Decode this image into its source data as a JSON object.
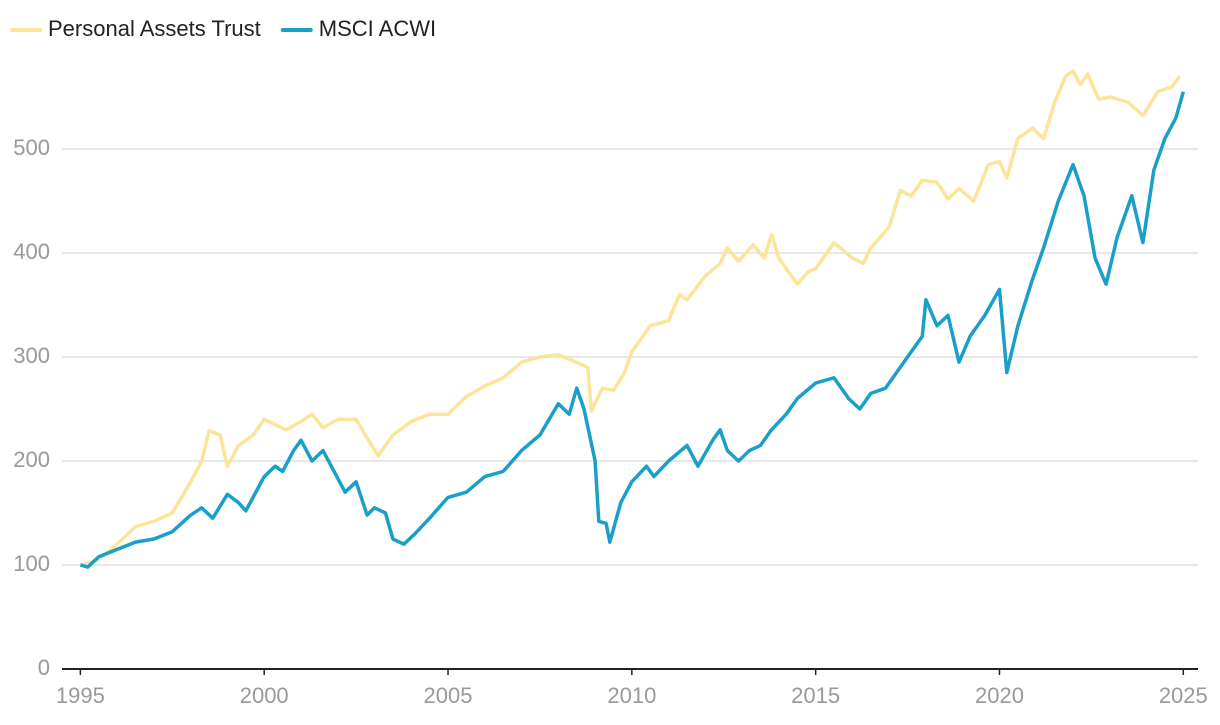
{
  "chart_data": {
    "type": "line",
    "xlim": [
      1994.5,
      2025.4
    ],
    "xticks": [
      1995,
      2000,
      2005,
      2010,
      2015,
      2020,
      2025
    ],
    "ylim": [
      0,
      600
    ],
    "yticks": [
      0,
      100,
      200,
      300,
      400,
      500
    ],
    "grid": true,
    "legend": "top-left",
    "series": [
      {
        "name": "Personal Assets Trust",
        "color": "#fce49a",
        "x": [
          1995.0,
          1995.5,
          1996.0,
          1996.5,
          1997.0,
          1997.5,
          1998.0,
          1998.3,
          1998.5,
          1998.8,
          1999.0,
          1999.3,
          1999.7,
          2000.0,
          2000.3,
          2000.6,
          2001.0,
          2001.3,
          2001.6,
          2002.0,
          2002.5,
          2002.8,
          2003.1,
          2003.5,
          2004.0,
          2004.5,
          2005.0,
          2005.5,
          2006.0,
          2006.5,
          2007.0,
          2007.5,
          2008.0,
          2008.5,
          2008.8,
          2008.9,
          2009.2,
          2009.5,
          2009.8,
          2010.0,
          2010.5,
          2011.0,
          2011.3,
          2011.5,
          2012.0,
          2012.4,
          2012.6,
          2012.9,
          2013.3,
          2013.6,
          2013.8,
          2014.0,
          2014.3,
          2014.5,
          2014.8,
          2015.0,
          2015.5,
          2016.0,
          2016.3,
          2016.5,
          2017.0,
          2017.3,
          2017.6,
          2017.9,
          2018.3,
          2018.6,
          2018.9,
          2019.3,
          2019.7,
          2020.0,
          2020.2,
          2020.5,
          2020.9,
          2021.2,
          2021.5,
          2021.8,
          2022.0,
          2022.2,
          2022.4,
          2022.7,
          2023.0,
          2023.5,
          2023.9,
          2024.3,
          2024.7,
          2024.9
        ],
        "values": [
          100,
          105,
          120,
          137,
          142,
          150,
          180,
          200,
          229,
          225,
          195,
          215,
          225,
          240,
          235,
          230,
          238,
          245,
          232,
          240,
          240,
          222,
          205,
          225,
          238,
          245,
          245,
          262,
          272,
          280,
          295,
          300,
          302,
          295,
          290,
          248,
          270,
          268,
          285,
          305,
          330,
          335,
          360,
          355,
          378,
          390,
          405,
          392,
          408,
          395,
          418,
          395,
          380,
          370,
          382,
          385,
          410,
          395,
          390,
          405,
          425,
          460,
          455,
          470,
          468,
          452,
          462,
          450,
          485,
          488,
          472,
          510,
          520,
          510,
          545,
          570,
          575,
          562,
          572,
          548,
          550,
          545,
          532,
          555,
          560,
          570
        ]
      },
      {
        "name": "MSCI ACWI",
        "color": "#1a9fc9",
        "x": [
          1995.0,
          1995.2,
          1995.5,
          1996.0,
          1996.5,
          1997.0,
          1997.5,
          1998.0,
          1998.3,
          1998.6,
          1999.0,
          1999.3,
          1999.5,
          2000.0,
          2000.3,
          2000.5,
          2000.8,
          2001.0,
          2001.3,
          2001.6,
          2001.9,
          2002.2,
          2002.5,
          2002.8,
          2003.0,
          2003.3,
          2003.5,
          2003.8,
          2004.1,
          2004.5,
          2005.0,
          2005.5,
          2006.0,
          2006.5,
          2007.0,
          2007.5,
          2008.0,
          2008.3,
          2008.5,
          2008.7,
          2009.0,
          2009.1,
          2009.3,
          2009.4,
          2009.7,
          2010.0,
          2010.4,
          2010.6,
          2011.0,
          2011.5,
          2011.8,
          2012.2,
          2012.4,
          2012.6,
          2012.9,
          2013.2,
          2013.5,
          2013.8,
          2014.2,
          2014.5,
          2015.0,
          2015.5,
          2015.9,
          2016.2,
          2016.5,
          2016.9,
          2017.3,
          2017.9,
          2018.0,
          2018.3,
          2018.6,
          2018.9,
          2019.2,
          2019.6,
          2020.0,
          2020.2,
          2020.5,
          2020.9,
          2021.2,
          2021.6,
          2022.0,
          2022.3,
          2022.6,
          2022.9,
          2023.2,
          2023.6,
          2023.9,
          2024.2,
          2024.5,
          2024.8,
          2025.0
        ],
        "values": [
          100,
          98,
          108,
          115,
          122,
          125,
          132,
          148,
          155,
          145,
          168,
          160,
          152,
          185,
          195,
          190,
          210,
          220,
          200,
          210,
          190,
          170,
          180,
          148,
          155,
          150,
          125,
          120,
          130,
          145,
          165,
          170,
          185,
          190,
          210,
          225,
          255,
          245,
          270,
          250,
          200,
          142,
          140,
          122,
          160,
          180,
          195,
          185,
          200,
          215,
          195,
          220,
          230,
          210,
          200,
          210,
          215,
          230,
          245,
          260,
          275,
          280,
          260,
          250,
          265,
          270,
          290,
          320,
          355,
          330,
          340,
          295,
          320,
          340,
          365,
          285,
          330,
          375,
          405,
          450,
          485,
          455,
          395,
          370,
          415,
          455,
          410,
          480,
          510,
          530,
          555
        ]
      }
    ]
  }
}
